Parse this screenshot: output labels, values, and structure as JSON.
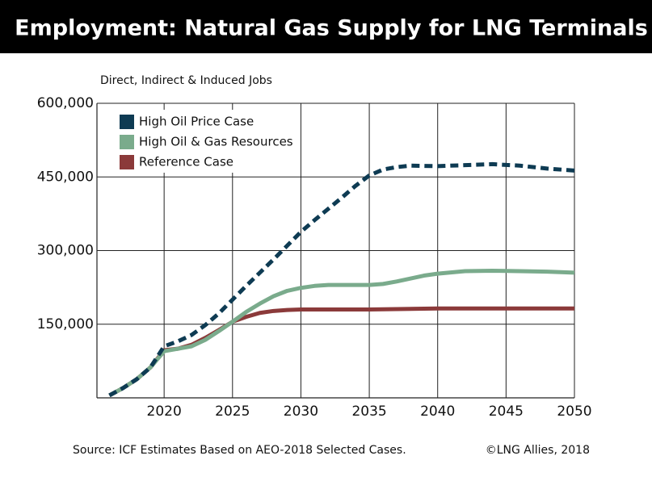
{
  "chart_data": {
    "type": "line",
    "title": "Employment: Natural Gas Supply for LNG Terminals",
    "y_label": "Direct, Indirect & Induced Jobs",
    "source": "Source:  ICF Estimates Based on AEO-2018 Selected Cases.",
    "credit": "©LNG Allies, 2018",
    "xlim": [
      2015,
      2050
    ],
    "xticks": [
      2020,
      2025,
      2030,
      2035,
      2040,
      2045,
      2050
    ],
    "ylim": [
      0,
      600000
    ],
    "yticks": [
      {
        "value": 150000,
        "label": "150,000"
      },
      {
        "value": 300000,
        "label": "300,000"
      },
      {
        "value": 450000,
        "label": "450,000"
      },
      {
        "value": 600000,
        "label": "600,000"
      }
    ],
    "grid": true,
    "legend": "upper left",
    "series": [
      {
        "name": "High Oil Price Case",
        "color": "#0e3b53",
        "dashed": true,
        "x": [
          2016,
          2017,
          2018,
          2019,
          2020,
          2021,
          2022,
          2023,
          2024,
          2025,
          2026,
          2027,
          2028,
          2029,
          2030,
          2031,
          2032,
          2033,
          2034,
          2035,
          2036,
          2037,
          2038,
          2040,
          2042,
          2044,
          2046,
          2048,
          2050
        ],
        "values": [
          5000,
          20000,
          38000,
          62000,
          105000,
          115000,
          128000,
          148000,
          172000,
          200000,
          228000,
          255000,
          282000,
          310000,
          338000,
          362000,
          385000,
          408000,
          432000,
          453000,
          465000,
          470000,
          473000,
          472000,
          474000,
          476000,
          473000,
          467000,
          463000
        ]
      },
      {
        "name": "High Oil & Gas Resources",
        "color": "#7aab8c",
        "dashed": false,
        "x": [
          2016,
          2017,
          2018,
          2019,
          2020,
          2021,
          2022,
          2023,
          2024,
          2025,
          2026,
          2027,
          2028,
          2029,
          2030,
          2031,
          2032,
          2035,
          2036,
          2037,
          2038,
          2039,
          2040,
          2042,
          2044,
          2046,
          2048,
          2050
        ],
        "values": [
          5000,
          20000,
          38000,
          62000,
          95000,
          100000,
          105000,
          118000,
          136000,
          155000,
          175000,
          192000,
          207000,
          218000,
          224000,
          228000,
          230000,
          230000,
          232000,
          237000,
          243000,
          249000,
          253000,
          258000,
          259000,
          258000,
          257000,
          255000
        ]
      },
      {
        "name": "Reference Case",
        "color": "#8b3a3a",
        "dashed": false,
        "x": [
          2016,
          2017,
          2018,
          2019,
          2020,
          2021,
          2022,
          2023,
          2024,
          2025,
          2026,
          2027,
          2028,
          2029,
          2030,
          2035,
          2040,
          2045,
          2050
        ],
        "values": [
          5000,
          20000,
          38000,
          62000,
          97000,
          100000,
          108000,
          122000,
          138000,
          155000,
          165000,
          173000,
          177000,
          179000,
          180000,
          180000,
          182000,
          182000,
          182000
        ]
      }
    ]
  }
}
